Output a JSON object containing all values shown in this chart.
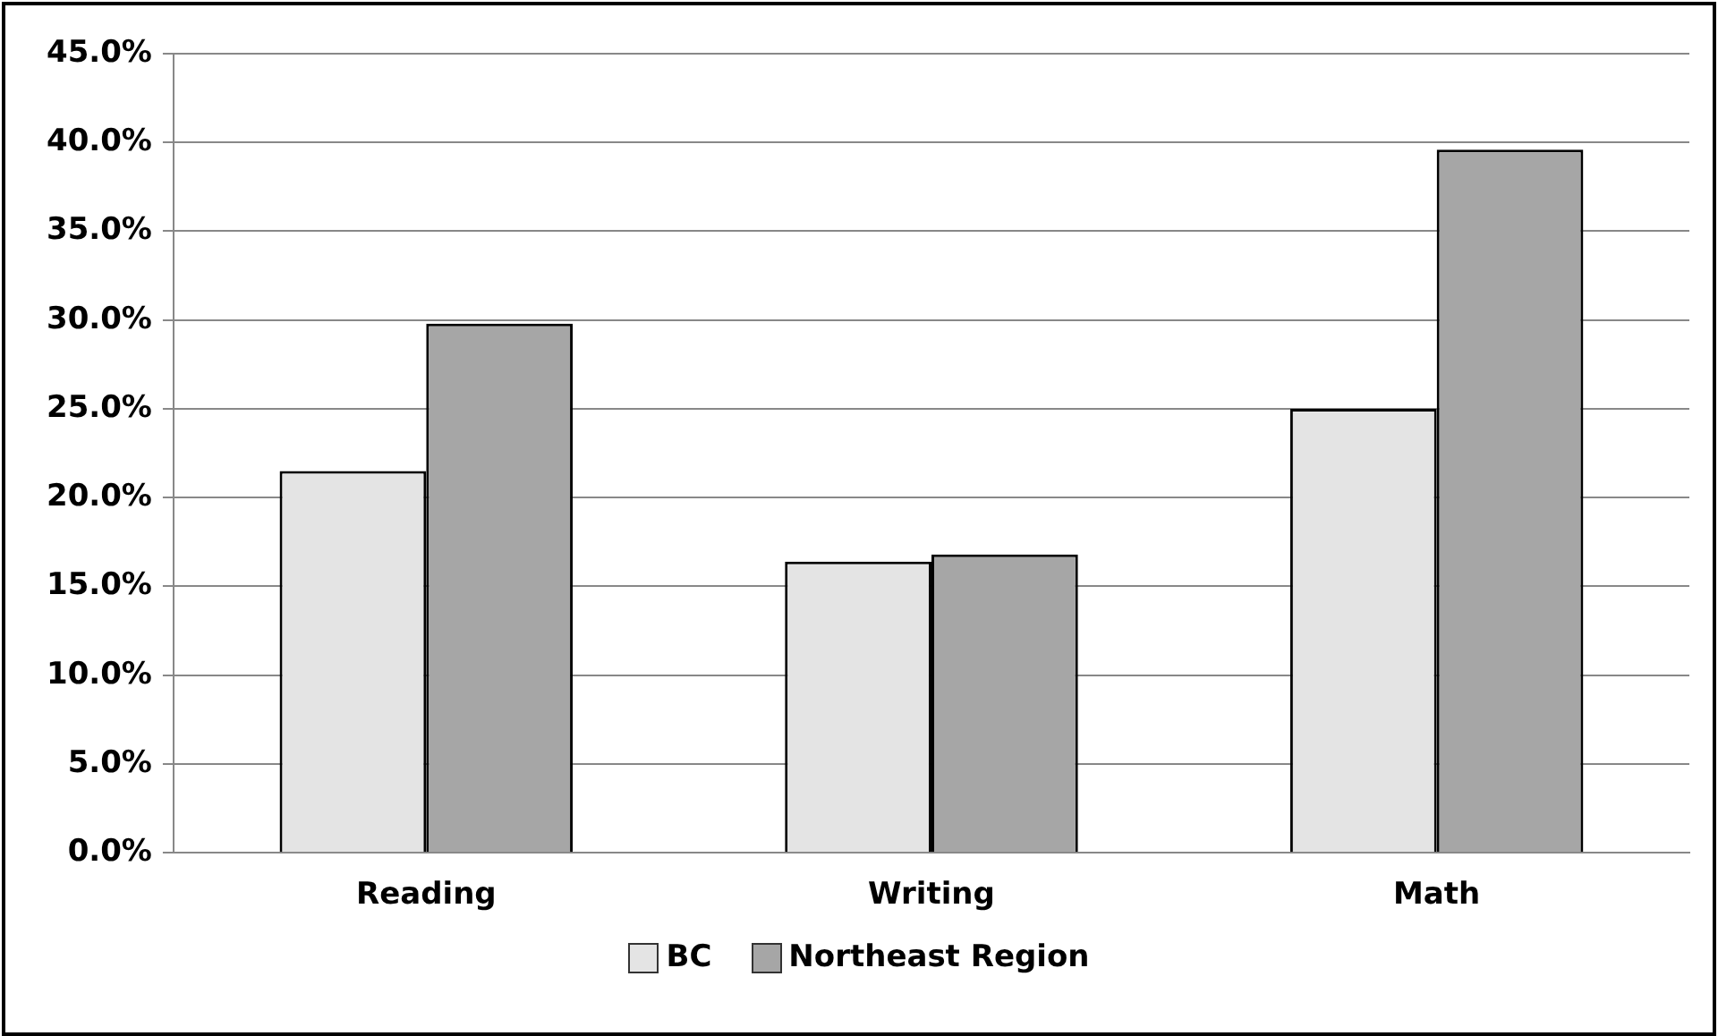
{
  "chart_data": {
    "type": "bar",
    "categories": [
      "Reading",
      "Writing",
      "Math"
    ],
    "series": [
      {
        "name": "BC",
        "color": "#e4e4e4",
        "values": [
          21.5,
          16.4,
          25.0
        ]
      },
      {
        "name": "Northeast Region",
        "color": "#a6a6a6",
        "values": [
          29.8,
          16.8,
          39.6
        ]
      }
    ],
    "ylim": [
      0,
      45
    ],
    "yticks": [
      {
        "value": 0,
        "label": "0.0%"
      },
      {
        "value": 5,
        "label": "5.0%"
      },
      {
        "value": 10,
        "label": "10.0%"
      },
      {
        "value": 15,
        "label": "15.0%"
      },
      {
        "value": 20,
        "label": "20.0%"
      },
      {
        "value": 25,
        "label": "25.0%"
      },
      {
        "value": 30,
        "label": "30.0%"
      },
      {
        "value": 35,
        "label": "35.0%"
      },
      {
        "value": 40,
        "label": "40.0%"
      },
      {
        "value": 45,
        "label": "45.0%"
      }
    ],
    "grid": "y",
    "legend": "bottom"
  }
}
